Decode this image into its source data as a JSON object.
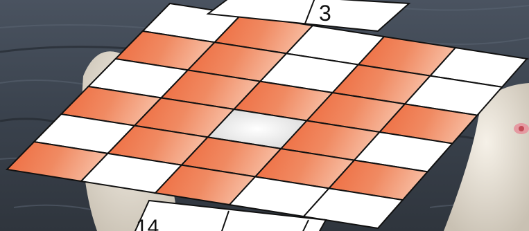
{
  "board": {
    "rows": [
      [
        "empty",
        "orange",
        "empty",
        "orange",
        "empty"
      ],
      [
        "orange",
        "orange",
        "empty",
        "orange",
        "empty"
      ],
      [
        "empty",
        "orange",
        "orange",
        "orange",
        "orange"
      ],
      [
        "orange",
        "orange",
        "highlight",
        "orange",
        "empty"
      ],
      [
        "empty",
        "orange",
        "orange",
        "orange",
        "orange"
      ],
      [
        "orange",
        "empty",
        "orange",
        "empty",
        "empty"
      ]
    ],
    "top_label": "3",
    "bottom_label": "14"
  },
  "colors": {
    "orange": "#ee6a3e",
    "orange_light": "#f7bba0",
    "empty": "#ffffff",
    "highlight": "#e6e6e6",
    "grid_line": "#111111",
    "water": "#3f4854",
    "bird": "#ece6dc"
  }
}
